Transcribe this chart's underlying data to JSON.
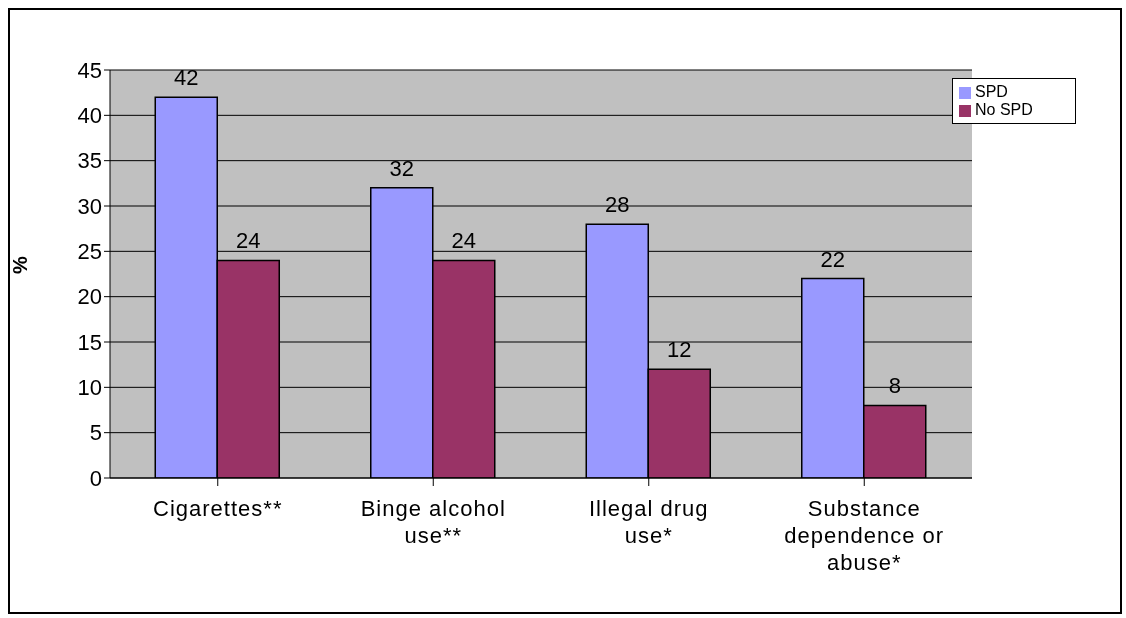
{
  "chart_data": {
    "type": "bar",
    "ylabel": "%",
    "categories": [
      "Cigarettes**",
      "Binge alcohol use**",
      "Illegal drug use*",
      "Substance dependence or abuse*"
    ],
    "series": [
      {
        "name": "SPD",
        "color": "#9999ff",
        "values": [
          42,
          32,
          28,
          22
        ]
      },
      {
        "name": "No SPD",
        "color": "#993366",
        "values": [
          24,
          24,
          12,
          8
        ]
      }
    ],
    "ylim": [
      0,
      45
    ],
    "yticks": [
      0,
      5,
      10,
      15,
      20,
      25,
      30,
      35,
      40,
      45
    ],
    "grid": "y",
    "legend": "top right",
    "data_labels": true
  }
}
